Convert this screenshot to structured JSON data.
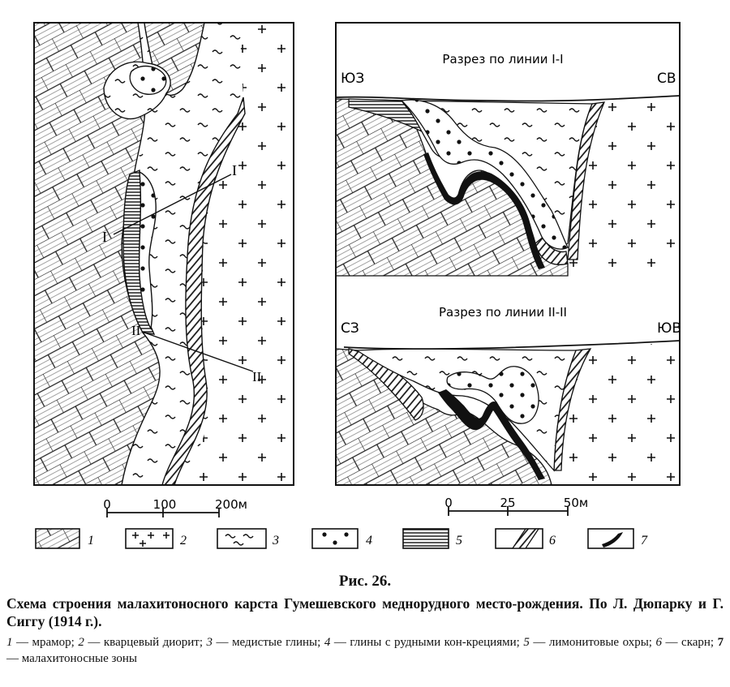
{
  "plan": {
    "label_I": "I",
    "label_I_end": "I",
    "label_II": "II",
    "label_II_end": "II"
  },
  "scale_left": {
    "labels": [
      "0",
      "100",
      "200м"
    ]
  },
  "section1": {
    "title": "Разрез по линии I-I",
    "left_label": "ЮЗ",
    "right_label": "СВ"
  },
  "section2": {
    "title": "Разрез по линии II-II",
    "left_label": "СЗ",
    "right_label": "ЮВ"
  },
  "scale_right": {
    "labels": [
      "0",
      "25",
      "50м"
    ]
  },
  "legend_keys": [
    "1",
    "2",
    "3",
    "4",
    "5",
    "6",
    "7"
  ],
  "caption": {
    "number": "Рис. 26.",
    "title": "Схема строения малахитоносного карста Гумешевского меднорудного место-рождения. По Л. Дюпарку и Г. Сиггу (1914 г.).",
    "legend": [
      {
        "n": "1",
        "text": "мрамор;"
      },
      {
        "n": "2",
        "text": "кварцевый диорит;"
      },
      {
        "n": "3",
        "text": "медистые глины;"
      },
      {
        "n": "4",
        "text": "глины с рудными кон-крециями;"
      },
      {
        "n": "5",
        "text": "лимонитовые охры;"
      },
      {
        "n": "6",
        "text": "скарн;"
      },
      {
        "n": "7",
        "text": "малахитоносные зоны"
      }
    ]
  }
}
